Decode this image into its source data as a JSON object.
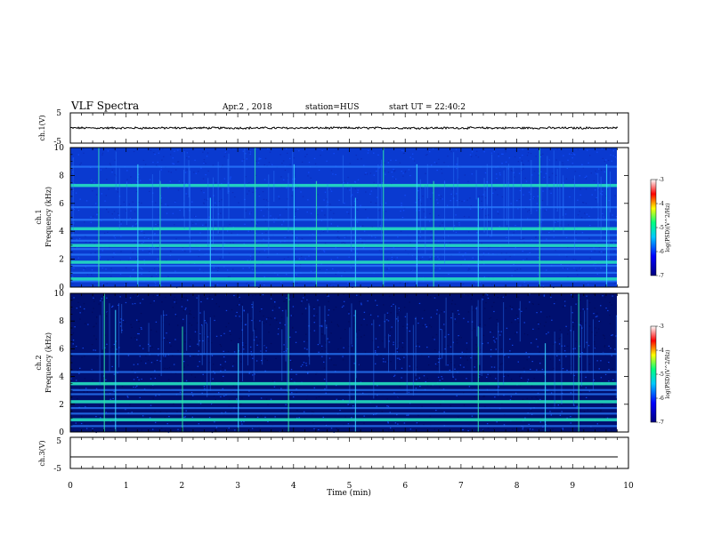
{
  "header": {
    "title": "VLF Spectra",
    "date": "Apr.2 , 2018",
    "station": "station=HUS",
    "start": "start UT = 22:40:2"
  },
  "chart_data": [
    {
      "type": "line",
      "ylabel": "ch.1(V)",
      "ylim": [
        -5,
        5
      ],
      "ytick_labels": [
        "5",
        "-5"
      ],
      "note": "noisy waveform, amplitude approx ±0.3 V around 0"
    },
    {
      "type": "heatmap",
      "ylabel_top": "ch.1",
      "ylabel": "Frequency (kHz)",
      "ylim": [
        0,
        10
      ],
      "yticks": [
        0,
        2,
        4,
        6,
        8,
        10
      ],
      "xlim": [
        0,
        10
      ],
      "colorbar": {
        "label": "log(PSD)(V^2/Hz)",
        "range": [
          -7,
          -3
        ],
        "ticks": [
          "-3",
          "-4",
          "-5",
          "-6",
          "-7"
        ]
      },
      "bands_khz": [
        0.4,
        0.6,
        1.0,
        1.5,
        1.8,
        2.3,
        2.7,
        3.0,
        3.3,
        3.7,
        4.2,
        4.8,
        5.7,
        7.3,
        8.6
      ],
      "spike_minutes": [
        0.5,
        1.2,
        1.6,
        2.5,
        3.3,
        4.0,
        4.4,
        5.1,
        5.6,
        6.2,
        6.5,
        7.3,
        8.4,
        9.6,
        9.8
      ]
    },
    {
      "type": "heatmap",
      "ylabel_top": "ch.2",
      "ylabel": "Frequency (kHz)",
      "ylim": [
        0,
        10
      ],
      "yticks": [
        0,
        2,
        4,
        6,
        8,
        10
      ],
      "xlim": [
        0,
        10
      ],
      "colorbar": {
        "label": "log(PSD)(V^2/Hz)",
        "range": [
          -7,
          -3
        ],
        "ticks": [
          "-3",
          "-4",
          "-5",
          "-6",
          "-7"
        ]
      },
      "bands_khz": [
        0.4,
        0.9,
        1.3,
        1.7,
        2.2,
        2.7,
        3.0,
        3.5,
        4.3,
        5.6
      ],
      "spike_minutes": [
        0.6,
        0.8,
        2.0,
        3.0,
        3.9,
        5.1,
        7.3,
        8.5,
        9.1
      ]
    },
    {
      "type": "line",
      "ylabel": "ch.3(V)",
      "ylim": [
        -5,
        5
      ],
      "ytick_labels": [
        "5",
        "-5"
      ],
      "xlabel": "Time (min)",
      "xlim": [
        0,
        10
      ],
      "xticks": [
        "0",
        "1",
        "2",
        "3",
        "4",
        "5",
        "6",
        "7",
        "8",
        "9",
        "10"
      ],
      "note": "flat line at approx -1.5 V"
    }
  ]
}
